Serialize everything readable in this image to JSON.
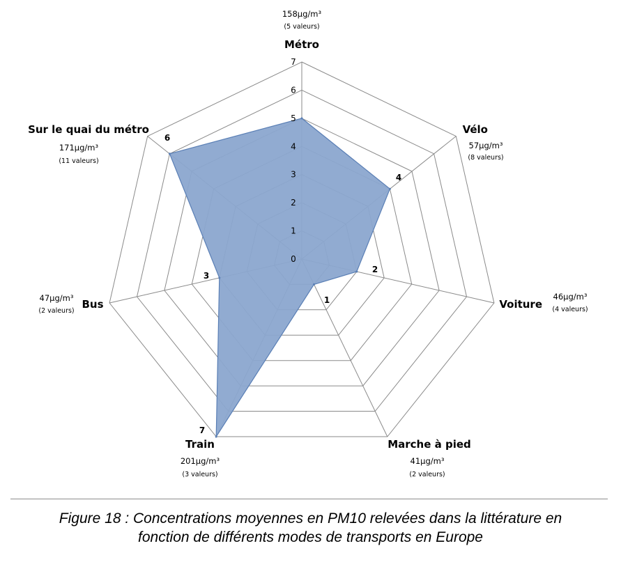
{
  "chart_data": {
    "type": "radar",
    "axis_range": [
      0,
      7
    ],
    "ticks": [
      "0",
      "1",
      "2",
      "3",
      "4",
      "5",
      "6",
      "7"
    ],
    "fill_color": "#8ba7cf",
    "edge_color": "#5a7fb5",
    "categories": [
      {
        "name": "Métro",
        "value": 5,
        "rank_label": "",
        "concentration": "158µg/m³",
        "count": "(5 valeurs)"
      },
      {
        "name": "Vélo",
        "value": 4,
        "rank_label": "4",
        "concentration": "57µg/m³",
        "count": "(8 valeurs)"
      },
      {
        "name": "Voiture",
        "value": 2,
        "rank_label": "2",
        "concentration": "46µg/m³",
        "count": "(4 valeurs)"
      },
      {
        "name": "Marche à pied",
        "value": 1,
        "rank_label": "1",
        "concentration": "41µg/m³",
        "count": "(2 valeurs)"
      },
      {
        "name": "Train",
        "value": 7,
        "rank_label": "7",
        "concentration": "201µg/m³",
        "count": "(3 valeurs)"
      },
      {
        "name": "Bus",
        "value": 3,
        "rank_label": "3",
        "concentration": "47µg/m³",
        "count": "(2 valeurs)"
      },
      {
        "name": "Sur le quai du métro",
        "value": 6,
        "rank_label": "6",
        "concentration": "171µg/m³",
        "count": "(11 valeurs)"
      }
    ]
  },
  "caption": {
    "line1": "Figure 18 : Concentrations moyennes en PM10 relevées dans la littérature en",
    "line2": "fonction de différents modes de transports en Europe"
  }
}
